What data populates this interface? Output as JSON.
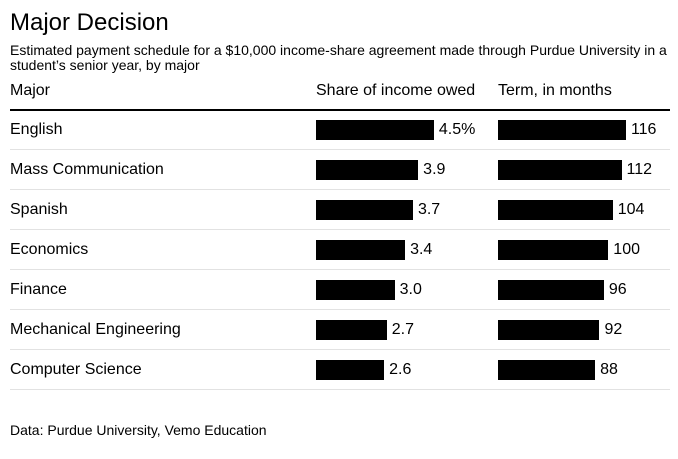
{
  "header": {
    "title": "Major Decision",
    "subtitle": "Estimated payment schedule for a $10,000 income-share agreement made through Purdue University in a student’s senior year, by major"
  },
  "columns": {
    "major": "Major",
    "share": "Share of income owed",
    "term": "Term, in months"
  },
  "chart_data": {
    "type": "bar",
    "categories": [
      "English",
      "Mass Communication",
      "Spanish",
      "Economics",
      "Finance",
      "Mechanical Engineering",
      "Computer Science"
    ],
    "series": [
      {
        "name": "Share of income owed",
        "values": [
          4.5,
          3.9,
          3.7,
          3.4,
          3.0,
          2.7,
          2.6
        ],
        "labels": [
          "4.5%",
          "3.9",
          "3.7",
          "3.4",
          "3.0",
          "2.7",
          "2.6"
        ]
      },
      {
        "name": "Term, in months",
        "values": [
          116,
          112,
          104,
          100,
          96,
          92,
          88
        ],
        "labels": [
          "116",
          "112",
          "104",
          "100",
          "96",
          "92",
          "88"
        ]
      }
    ],
    "bar_color": "#000000"
  },
  "footer": {
    "source": "Data: Purdue University, Vemo Education"
  }
}
